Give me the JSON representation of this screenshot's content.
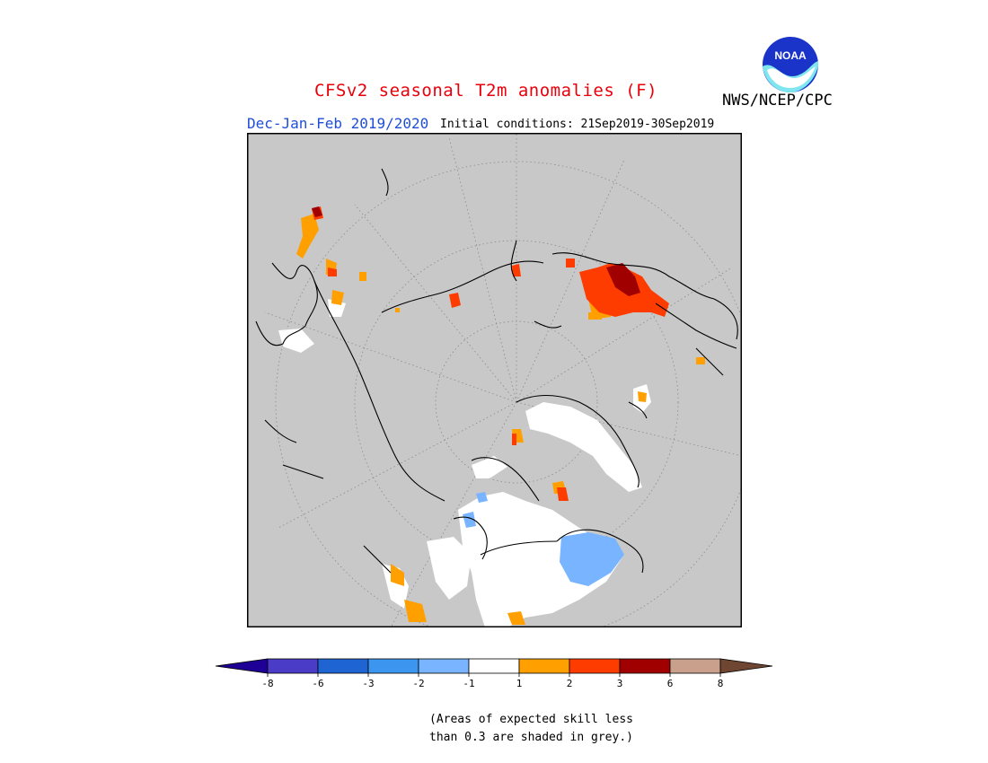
{
  "title": "CFSv2 seasonal T2m anomalies (F)",
  "season": "Dec-Jan-Feb 2019/2020",
  "initial_conditions": "Initial conditions: 21Sep2019-30Sep2019",
  "agency": "NWS/NCEP/CPC",
  "logo_text": "NOAA",
  "colors": {
    "grey": "#c8c8c8",
    "white": "#ffffff",
    "orange": "#ffa000",
    "red_orange": "#ff3c00",
    "dark_red": "#a00000",
    "light_blue": "#78b4ff",
    "title_red": "#e8000b",
    "subtitle_blue": "#1f4fd6"
  },
  "legend": {
    "bins": [
      {
        "color": "#1e0096"
      },
      {
        "color": "#4b3cc8"
      },
      {
        "color": "#1e64d2"
      },
      {
        "color": "#3c96f0"
      },
      {
        "color": "#78b4ff"
      },
      {
        "color": "#ffffff"
      },
      {
        "color": "#ffa000"
      },
      {
        "color": "#ff3c00"
      },
      {
        "color": "#a00000"
      },
      {
        "color": "#c8a08c"
      },
      {
        "color": "#6e4632"
      }
    ],
    "labels": [
      "-8",
      "-6",
      "-3",
      "-2",
      "-1",
      "1",
      "2",
      "3",
      "6",
      "8"
    ]
  },
  "note": {
    "line1": "(Areas of expected skill less",
    "line2": "than 0.3 are shaded in grey.)"
  }
}
